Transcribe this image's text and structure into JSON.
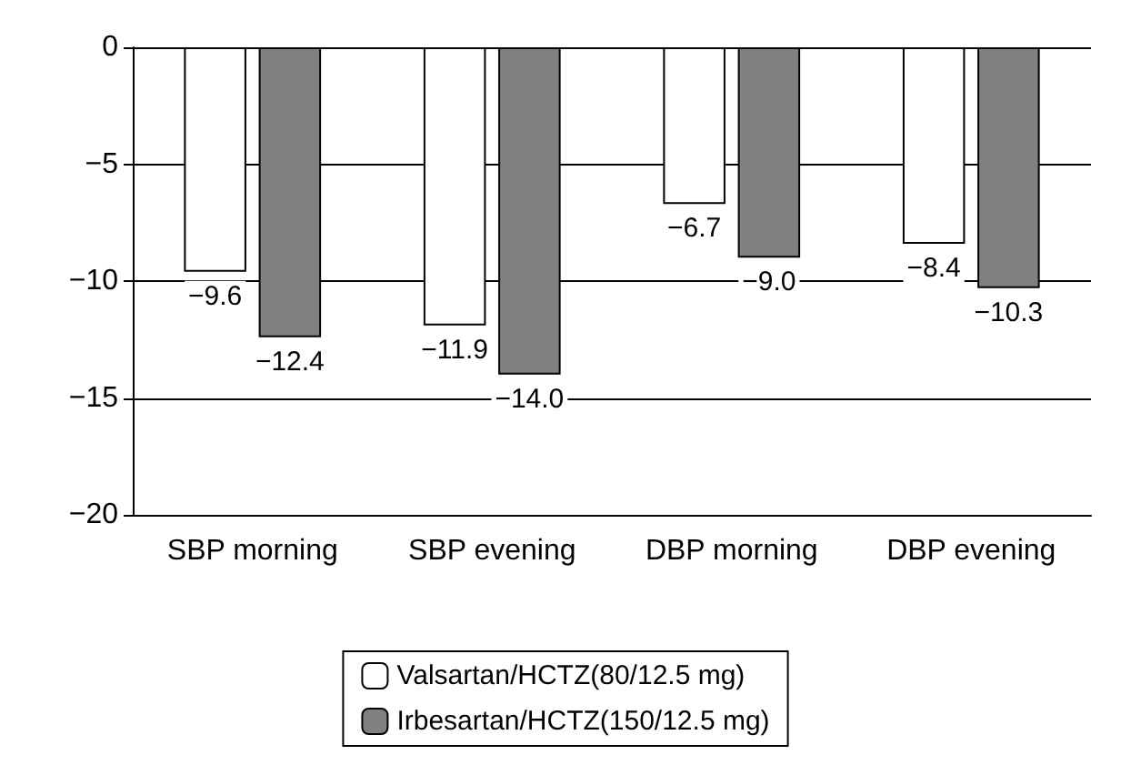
{
  "chart_data": {
    "type": "bar",
    "categories": [
      "SBP morning",
      "SBP evening",
      "DBP morning",
      "DBP evening"
    ],
    "series": [
      {
        "name": "Valsartan/HCTZ(80/12.5 mg)",
        "color": "#ffffff",
        "values": [
          -9.6,
          -11.9,
          -6.7,
          -8.4
        ],
        "value_labels": [
          "−9.6",
          "−11.9",
          "−6.7",
          "−8.4"
        ]
      },
      {
        "name": "Irbesartan/HCTZ(150/12.5 mg)",
        "color": "#808080",
        "values": [
          -12.4,
          -14.0,
          -9.0,
          -10.3
        ],
        "value_labels": [
          "−12.4",
          "−14.0",
          "−9.0",
          "−10.3"
        ]
      }
    ],
    "ylim": [
      -20,
      0
    ],
    "yticks": [
      {
        "value": 0,
        "label": "0"
      },
      {
        "value": -5,
        "label": "−5"
      },
      {
        "value": -10,
        "label": "−10"
      },
      {
        "value": -15,
        "label": "−15"
      },
      {
        "value": -20,
        "label": "−20"
      }
    ],
    "grid": "y",
    "legend": "bottom"
  }
}
